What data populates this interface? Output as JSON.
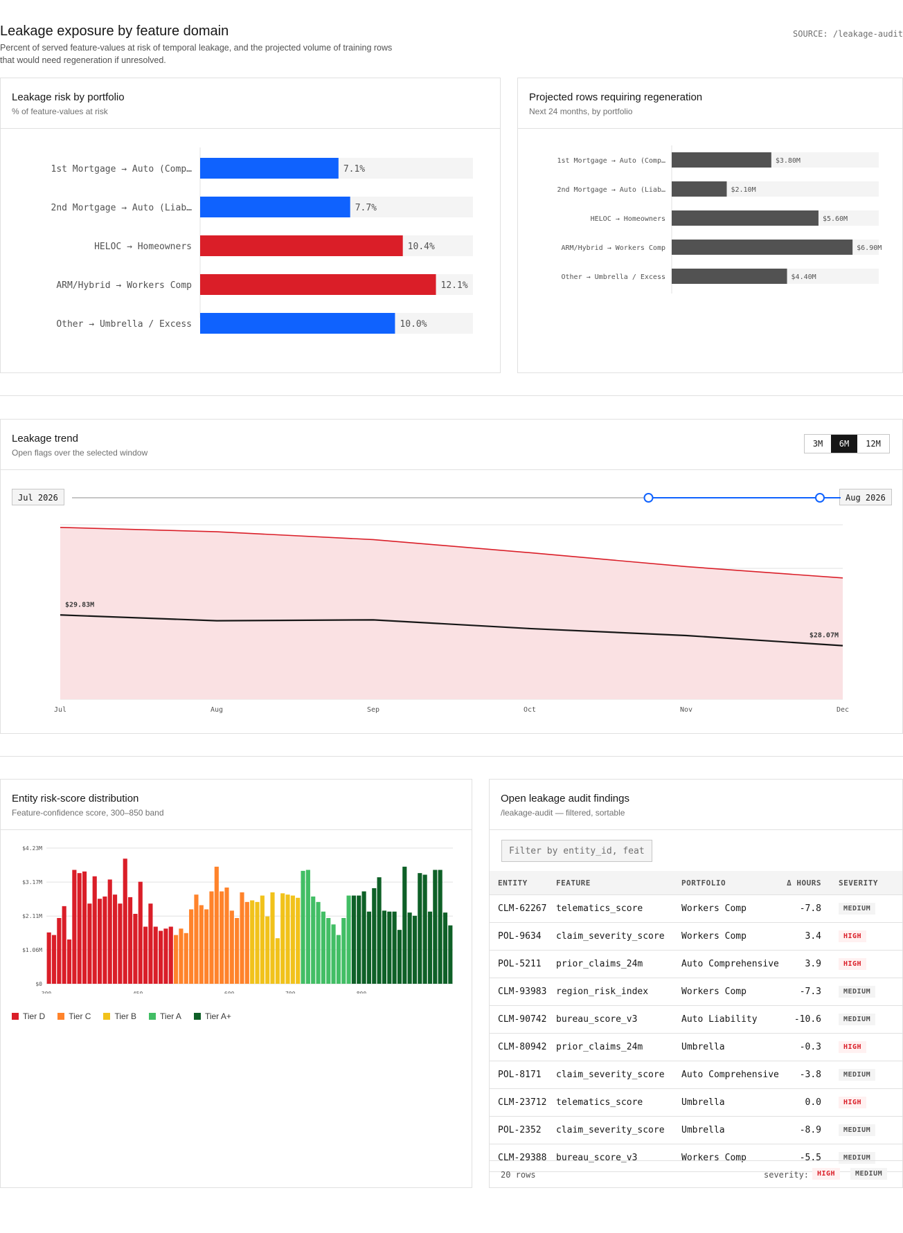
{
  "header": {
    "title": "Leakage exposure by feature domain",
    "subtitle": "Percent of served feature-values at risk of temporal leakage, and the projected volume of training rows that would need regeneration if unresolved.",
    "source": "SOURCE: /leakage-audit"
  },
  "risk_panel": {
    "title": "Leakage risk by portfolio",
    "subtitle": "% of feature-values at risk"
  },
  "regen_panel": {
    "title": "Projected rows requiring regeneration",
    "subtitle": "Next 24 months, by portfolio"
  },
  "trend_panel": {
    "title": "Leakage trend",
    "subtitle": "Open flags over the selected window",
    "ranges": [
      "3M",
      "6M",
      "12M"
    ],
    "active_range": "6M",
    "start_label": "Jul 2026",
    "end_label": "Aug 2026",
    "slider": {
      "start": 0.75,
      "end": 1.0
    }
  },
  "dist_panel": {
    "title": "Entity risk-score distribution",
    "subtitle": "Feature-confidence score, 300–850 band",
    "legend": [
      {
        "label": "Tier D",
        "color": "#da1e28"
      },
      {
        "label": "Tier C",
        "color": "#ff832b"
      },
      {
        "label": "Tier B",
        "color": "#f1c21b"
      },
      {
        "label": "Tier A",
        "color": "#42be65"
      },
      {
        "label": "Tier A+",
        "color": "#0e6027"
      }
    ]
  },
  "findings_panel": {
    "title": "Open leakage audit findings",
    "subtitle": "/leakage-audit — filtered, sortable",
    "filter_placeholder": "Filter by entity_id, feature...",
    "columns": [
      "ENTITY",
      "FEATURE",
      "PORTFOLIO",
      "Δ HOURS",
      "SEVERITY"
    ],
    "rows": [
      [
        "CLM-62267",
        "telematics_score",
        "Workers Comp",
        "-7.8",
        "MEDIUM"
      ],
      [
        "POL-9634",
        "claim_severity_score",
        "Workers Comp",
        "3.4",
        "HIGH"
      ],
      [
        "POL-5211",
        "prior_claims_24m",
        "Auto Comprehensive",
        "3.9",
        "HIGH"
      ],
      [
        "CLM-93983",
        "region_risk_index",
        "Workers Comp",
        "-7.3",
        "MEDIUM"
      ],
      [
        "CLM-90742",
        "bureau_score_v3",
        "Auto Liability",
        "-10.6",
        "MEDIUM"
      ],
      [
        "CLM-80942",
        "prior_claims_24m",
        "Umbrella",
        "-0.3",
        "HIGH"
      ],
      [
        "POL-8171",
        "claim_severity_score",
        "Auto Comprehensive",
        "-3.8",
        "MEDIUM"
      ],
      [
        "CLM-23712",
        "telematics_score",
        "Umbrella",
        "0.0",
        "HIGH"
      ],
      [
        "POL-2352",
        "claim_severity_score",
        "Umbrella",
        "-8.9",
        "MEDIUM"
      ],
      [
        "CLM-29388",
        "bureau_score_v3",
        "Workers Comp",
        "-5.5",
        "MEDIUM"
      ]
    ],
    "row_count": "20 rows",
    "severity_label": "severity:",
    "severity_high": "HIGH",
    "severity_medium": "MEDIUM"
  },
  "colors": {
    "blue": "#0f62fe",
    "red": "#da1e28",
    "gray_bar": "#525252",
    "track": "#f4f4f4",
    "band_fill": "#fae1e3"
  },
  "chart_data": [
    {
      "type": "bar",
      "orientation": "horizontal",
      "categories": [
        "1st Mortgage → Auto (Comp…",
        "2nd Mortgage → Auto (Liab…",
        "HELOC → Homeowners",
        "ARM/Hybrid → Workers Comp",
        "Other → Umbrella / Excess"
      ],
      "values": [
        7.1,
        7.7,
        10.4,
        12.1,
        10.0
      ],
      "value_labels": [
        "7.1%",
        "7.7%",
        "10.4%",
        "12.1%",
        "10.0%"
      ],
      "highlight": [
        false,
        false,
        true,
        true,
        false
      ],
      "xlim": [
        0,
        14
      ]
    },
    {
      "type": "bar",
      "orientation": "horizontal",
      "categories": [
        "1st Mortgage → Auto (Comp…",
        "2nd Mortgage → Auto (Liab…",
        "HELOC → Homeowners",
        "ARM/Hybrid → Workers Comp",
        "Other → Umbrella / Excess"
      ],
      "values": [
        3.8,
        2.1,
        5.6,
        6.9,
        4.4
      ],
      "value_labels": [
        "$3.80M",
        "$2.10M",
        "$5.60M",
        "$6.90M",
        "$4.40M"
      ],
      "xlim": [
        0,
        7.9
      ]
    },
    {
      "type": "area",
      "categories": [
        "Jul",
        "Aug",
        "Sep",
        "Oct",
        "Nov",
        "Dec"
      ],
      "upper": [
        34.85,
        34.6,
        34.15,
        33.4,
        32.6,
        31.95
      ],
      "series": [
        {
          "values": [
            29.83,
            29.5,
            29.55,
            29.05,
            28.65,
            28.07
          ]
        }
      ],
      "start_label": "$29.83M",
      "end_label": "$28.07M",
      "ylim": [
        25,
        35
      ]
    },
    {
      "type": "bar",
      "yticks": [
        "$0",
        "$1.06M",
        "$2.11M",
        "$3.17M",
        "$4.23M"
      ],
      "ytick_values": [
        0,
        1.06,
        2.11,
        3.17,
        4.23
      ],
      "xticks": [
        "300",
        "450",
        "600",
        "700",
        "800"
      ],
      "xtick_index": [
        0,
        18,
        36,
        48,
        62
      ],
      "ylim": [
        0,
        4.23
      ],
      "values": [
        1.6,
        1.52,
        2.05,
        2.42,
        1.38,
        3.55,
        3.45,
        3.5,
        2.5,
        3.35,
        2.65,
        2.72,
        3.25,
        2.78,
        2.5,
        3.9,
        2.7,
        2.18,
        3.18,
        1.78,
        2.5,
        1.78,
        1.65,
        1.72,
        1.78,
        1.52,
        1.72,
        1.58,
        2.32,
        2.78,
        2.45,
        2.32,
        2.88,
        3.65,
        2.88,
        3.0,
        2.28,
        2.05,
        2.85,
        2.55,
        2.6,
        2.55,
        2.75,
        2.1,
        2.85,
        1.42,
        2.82,
        2.78,
        2.75,
        2.68,
        3.52,
        3.55,
        2.72,
        2.55,
        2.25,
        2.05,
        1.85,
        1.52,
        2.05,
        2.75,
        2.75,
        2.75,
        2.88,
        2.25,
        2.98,
        3.32,
        2.28,
        2.25,
        2.25,
        1.68,
        3.65,
        2.22,
        2.12,
        3.45,
        3.4,
        2.25,
        3.55,
        3.55,
        2.22,
        1.82
      ],
      "tiers": [
        "D",
        "D",
        "D",
        "D",
        "D",
        "D",
        "D",
        "D",
        "D",
        "D",
        "D",
        "D",
        "D",
        "D",
        "D",
        "D",
        "D",
        "D",
        "D",
        "D",
        "D",
        "D",
        "D",
        "D",
        "D",
        "C",
        "C",
        "C",
        "C",
        "C",
        "C",
        "C",
        "C",
        "C",
        "C",
        "C",
        "C",
        "C",
        "C",
        "C",
        "B",
        "B",
        "B",
        "B",
        "B",
        "B",
        "B",
        "B",
        "B",
        "B",
        "A",
        "A",
        "A",
        "A",
        "A",
        "A",
        "A",
        "A",
        "A",
        "A",
        "A+",
        "A+",
        "A+",
        "A+",
        "A+",
        "A+",
        "A+",
        "A+",
        "A+",
        "A+",
        "A+",
        "A+",
        "A+",
        "A+",
        "A+",
        "A+",
        "A+",
        "A+",
        "A+",
        "A+"
      ]
    }
  ]
}
